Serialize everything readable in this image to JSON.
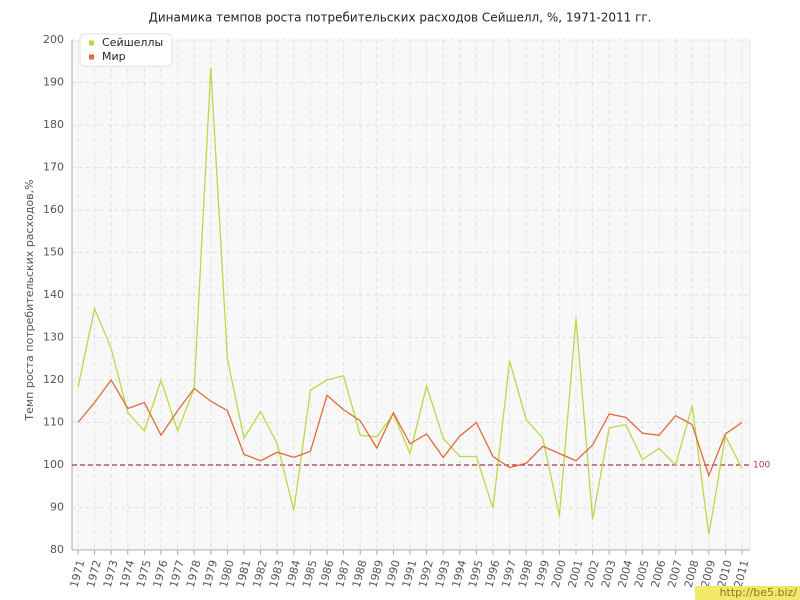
{
  "chart_data": {
    "type": "line",
    "title": "Динамика темпов роста потребительских расходов Сейшелл, %, 1971-2011 гг.",
    "y_label": "Темп роста потребительских расходов,%",
    "x": [
      1971,
      1972,
      1973,
      1974,
      1975,
      1976,
      1977,
      1978,
      1979,
      1980,
      1981,
      1982,
      1983,
      1984,
      1985,
      1986,
      1987,
      1988,
      1989,
      1990,
      1991,
      1992,
      1993,
      1994,
      1995,
      1996,
      1997,
      1998,
      1999,
      2000,
      2001,
      2002,
      2003,
      2004,
      2005,
      2006,
      2007,
      2008,
      2009,
      2010,
      2011
    ],
    "xlim": [
      1971,
      2011
    ],
    "series": [
      {
        "name": "Сейшеллы",
        "color": "#bcd848",
        "values": [
          118.3,
          136.8,
          127.4,
          112.3,
          108,
          120,
          108,
          118,
          193.5,
          125,
          106.3,
          112.6,
          105,
          89.3,
          117.6,
          120,
          121,
          107,
          106.6,
          112,
          102.7,
          118.6,
          106.3,
          102,
          102,
          89.8,
          124.5,
          110.7,
          106.3,
          88,
          134.6,
          87.2,
          108.7,
          109.5,
          101.3,
          103.9,
          100,
          114,
          83.6,
          106.8,
          99.2
        ]
      },
      {
        "name": "Мир",
        "color": "#e06a3e",
        "values": [
          110,
          114.7,
          120,
          113.3,
          114.7,
          107,
          112.8,
          118,
          115,
          112.8,
          102.5,
          101,
          103,
          101.8,
          103.2,
          116.4,
          113,
          110.4,
          104,
          112.3,
          105,
          107.3,
          101.8,
          106.8,
          110,
          102,
          99.4,
          100.4,
          104.4,
          102.7,
          101,
          104.7,
          112,
          111.2,
          107.5,
          107,
          111.6,
          109.5,
          97.5,
          107.3,
          110
        ]
      }
    ],
    "ylim": [
      80,
      200
    ],
    "yticks": [
      80,
      90,
      100,
      110,
      120,
      130,
      140,
      150,
      160,
      170,
      180,
      190,
      200
    ],
    "grid": true,
    "legend": "top-left",
    "reference_line": {
      "value": 100,
      "color": "#b03050"
    },
    "watermark": "http://be5.biz/"
  }
}
